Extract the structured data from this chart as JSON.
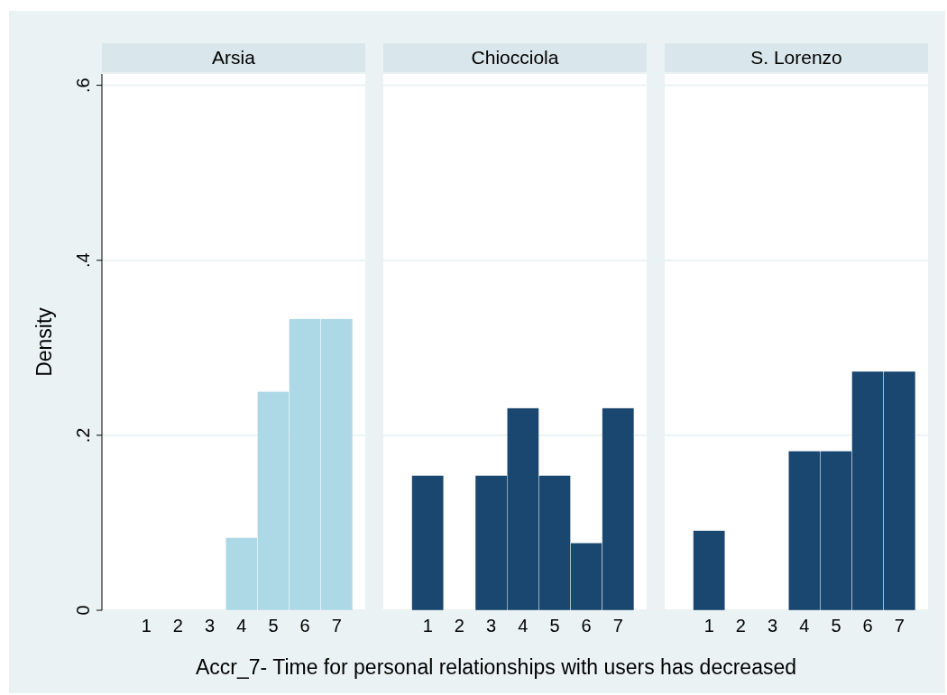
{
  "chart_data": [
    {
      "type": "histogram",
      "title": "Arsia",
      "ylabel": "Density",
      "bins": [
        0.5,
        1.5,
        2.5,
        3.5,
        4.5,
        5.5,
        6.5,
        7.5
      ],
      "values": [
        0,
        0,
        0,
        0.083,
        0.25,
        0.333,
        0.333
      ],
      "color": "#add8e6",
      "xlim": [
        -0.4,
        7.9
      ],
      "xticks": [
        1,
        2,
        3,
        4,
        5,
        6,
        7
      ],
      "ylim": [
        0,
        0.613
      ],
      "yticks": [
        {
          "value": 0,
          "label": "0"
        },
        {
          "value": 0.2,
          "label": ".2"
        },
        {
          "value": 0.4,
          "label": ".4"
        },
        {
          "value": 0.6,
          "label": ".6"
        }
      ],
      "grid": "y"
    },
    {
      "type": "histogram",
      "title": "Chiocciola",
      "xlabel": "Accr_7- Time for personal relationships with users has decreased",
      "bins": [
        0.5,
        1.5,
        2.5,
        3.5,
        4.5,
        5.5,
        6.5,
        7.5
      ],
      "values": [
        0.154,
        0,
        0.154,
        0.231,
        0.154,
        0.077,
        0.231
      ],
      "color": "#1a476f",
      "xlim": [
        -0.4,
        7.9
      ],
      "xticks": [
        1,
        2,
        3,
        4,
        5,
        6,
        7
      ],
      "ylim": [
        0,
        0.613
      ],
      "yticks": [
        0,
        0.2,
        0.4,
        0.6
      ],
      "grid": "y",
      "tick_labels": "x"
    },
    {
      "type": "histogram",
      "title": "S. Lorenzo",
      "bins": [
        0.5,
        1.5,
        2.5,
        3.5,
        4.5,
        5.5,
        6.5,
        7.5
      ],
      "values": [
        0.091,
        0,
        0,
        0.182,
        0.182,
        0.273,
        0.273
      ],
      "color": "#1a476f",
      "xlim": [
        -0.4,
        7.9
      ],
      "xticks": [
        1,
        2,
        3,
        4,
        5,
        6,
        7
      ],
      "ylim": [
        0,
        0.613
      ],
      "yticks": [
        0,
        0.2,
        0.4,
        0.6
      ],
      "grid": "y",
      "tick_labels": "x"
    }
  ]
}
